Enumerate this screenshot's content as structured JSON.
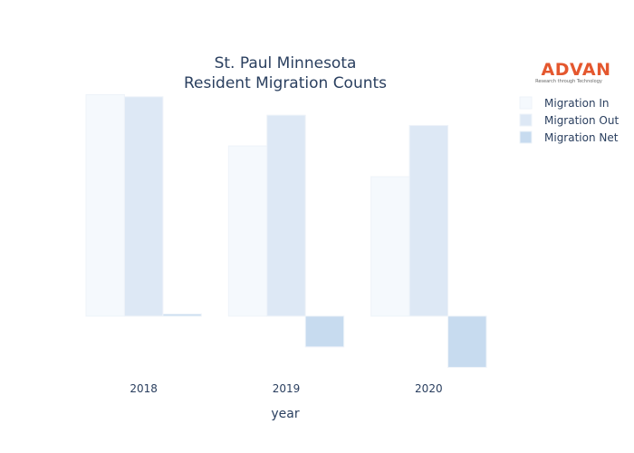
{
  "logo": {
    "name": "ADVAN",
    "tagline": "Research through Technology",
    "color": "#e4572e"
  },
  "chart_data": {
    "type": "bar",
    "title_lines": [
      "St. Paul Minnesota",
      "Resident Migration Counts"
    ],
    "xlabel": "year",
    "ylabel": "",
    "categories": [
      "2018",
      "2019",
      "2020"
    ],
    "series": [
      {
        "name": "Migration In",
        "color": "#f5f9fd",
        "values": [
          108,
          83,
          68
        ]
      },
      {
        "name": "Migration Out",
        "color": "#dde8f5",
        "values": [
          107,
          98,
          93
        ]
      },
      {
        "name": "Migration Net",
        "color": "#c7dbef",
        "values": [
          1,
          -15,
          -25
        ]
      }
    ],
    "ylim": [
      -27,
      110
    ],
    "grid": false,
    "legend_position": "top-right"
  }
}
